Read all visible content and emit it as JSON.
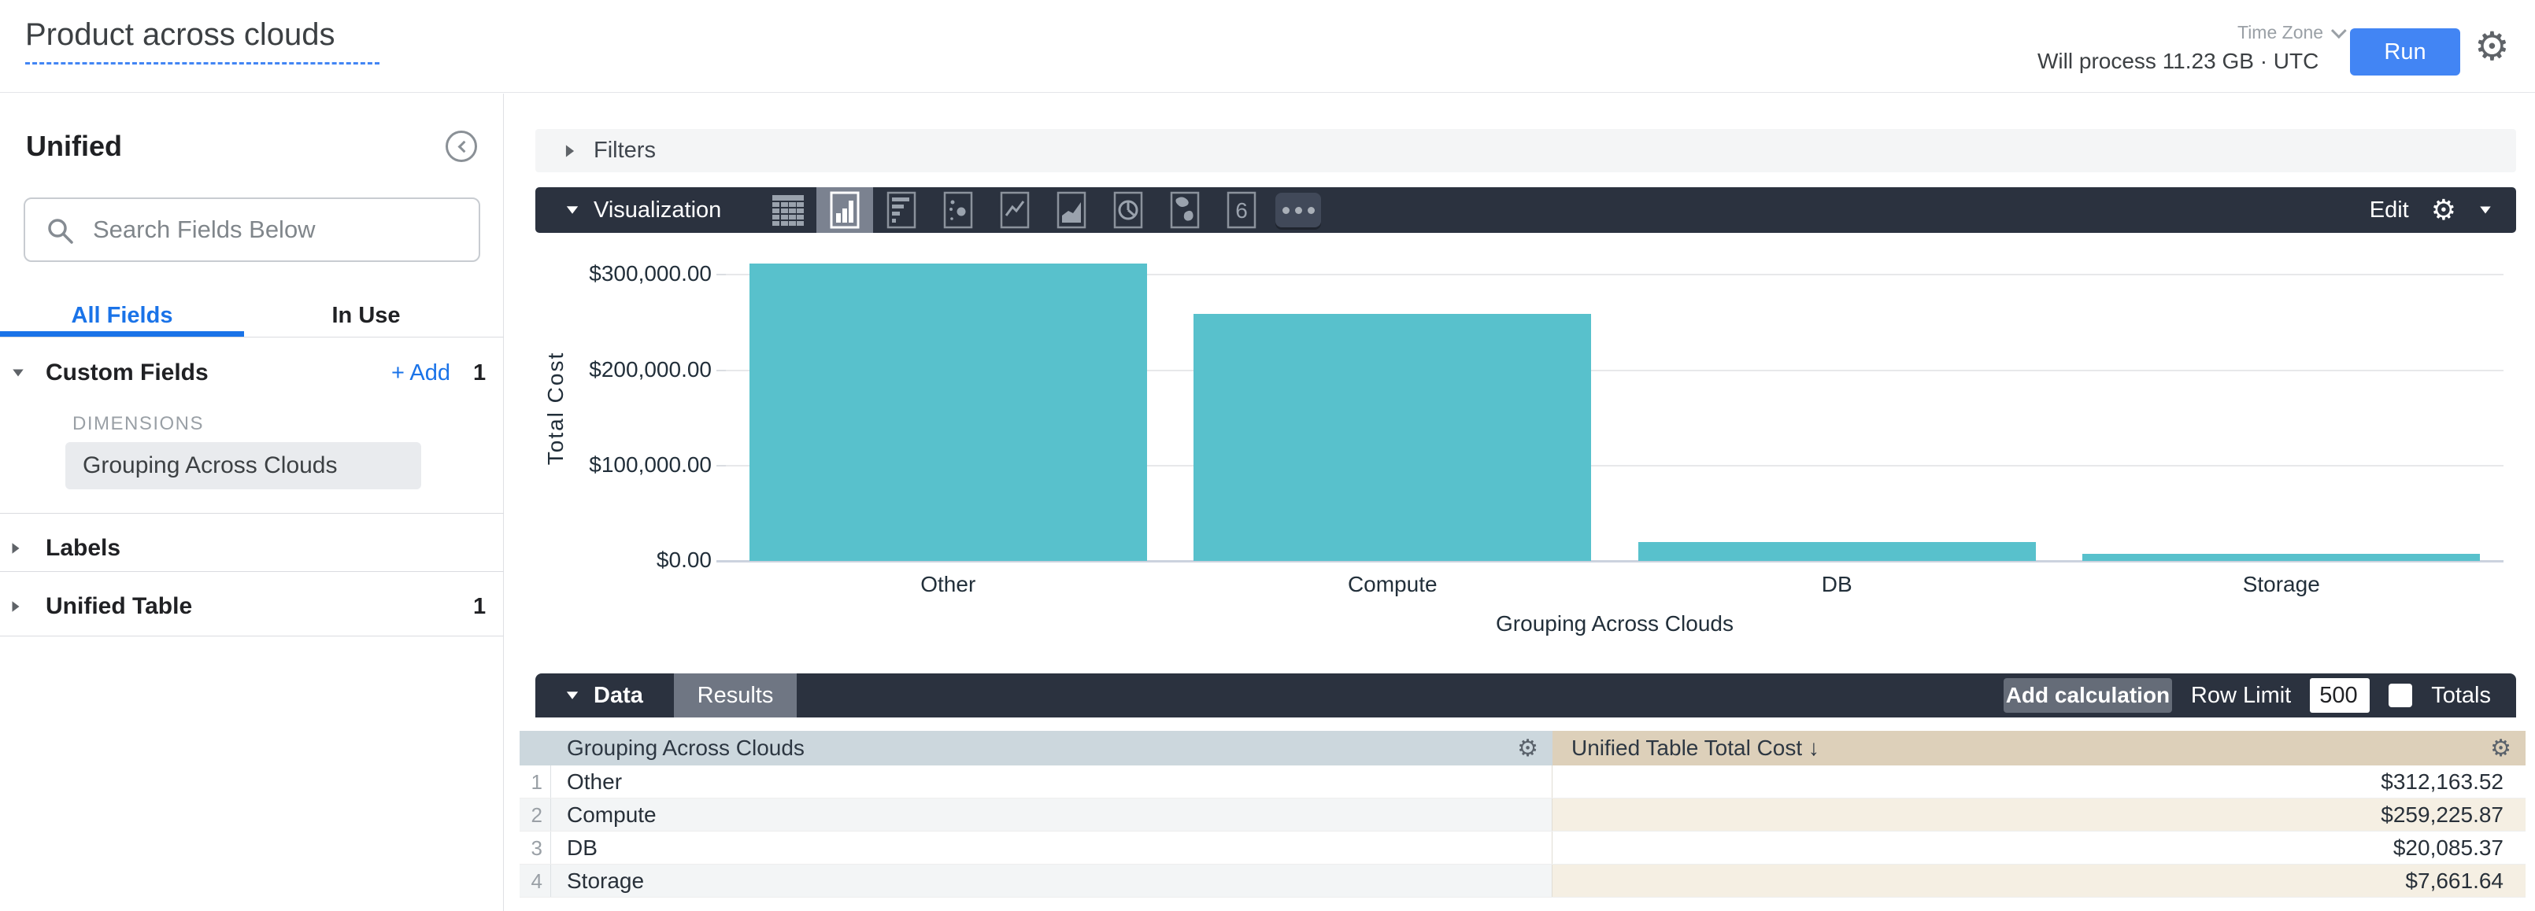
{
  "header": {
    "title": "Product across clouds",
    "process_info": "Will process 11.23 GB · UTC",
    "timezone_label": "Time Zone",
    "run_label": "Run"
  },
  "sidebar": {
    "model_name": "Unified",
    "search_placeholder": "Search Fields Below",
    "tabs": {
      "all_fields": "All Fields",
      "in_use": "In Use"
    },
    "custom_fields": {
      "label": "Custom Fields",
      "add_label": "+ Add",
      "count": "1",
      "group_label": "DIMENSIONS",
      "field": "Grouping Across Clouds"
    },
    "labels_section": {
      "label": "Labels"
    },
    "unified_table_section": {
      "label": "Unified Table",
      "count": "1"
    }
  },
  "filters": {
    "label": "Filters"
  },
  "visualization": {
    "label": "Visualization",
    "edit_label": "Edit",
    "icons": [
      "table",
      "column-chart",
      "bar-chart",
      "scatter",
      "line-chart",
      "area-chart",
      "pie-chart",
      "map",
      "single-value",
      "more"
    ],
    "selected_icon": "column-chart",
    "single_value_glyph": "6"
  },
  "chart_data": {
    "type": "bar",
    "title": "",
    "categories": [
      "Other",
      "Compute",
      "DB",
      "Storage"
    ],
    "values": [
      312163.52,
      259225.87,
      20085.37,
      7661.64
    ],
    "xlabel": "Grouping Across Clouds",
    "ylabel": "Total Cost",
    "ylim": [
      0,
      320000
    ],
    "yticks": [
      {
        "value": 0,
        "label": "$0.00"
      },
      {
        "value": 100000,
        "label": "$100,000.00"
      },
      {
        "value": 200000,
        "label": "$200,000.00"
      },
      {
        "value": 300000,
        "label": "$300,000.00"
      }
    ],
    "bar_color": "#58c1cc",
    "grid": true,
    "legend": "none"
  },
  "data_panel": {
    "label": "Data",
    "results_tab": "Results",
    "add_calculation": "Add calculation",
    "row_limit_label": "Row Limit",
    "row_limit_value": "500",
    "totals_label": "Totals"
  },
  "table": {
    "columns": [
      {
        "label": "Grouping Across Clouds"
      },
      {
        "label": "Unified Table Total Cost",
        "sort": "↓"
      }
    ],
    "rows": [
      {
        "num": "1",
        "dimension": "Other",
        "value": "$312,163.52"
      },
      {
        "num": "2",
        "dimension": "Compute",
        "value": "$259,225.87"
      },
      {
        "num": "3",
        "dimension": "DB",
        "value": "$20,085.37"
      },
      {
        "num": "4",
        "dimension": "Storage",
        "value": "$7,661.64"
      }
    ]
  },
  "colors": {
    "accent_blue": "#4285f4",
    "link_blue": "#1a73e8",
    "dark_panel": "#2b323f",
    "teal_bar": "#58c1cc",
    "dimension_header": "#ccd7dd",
    "measure_header": "#ddd0ba"
  }
}
